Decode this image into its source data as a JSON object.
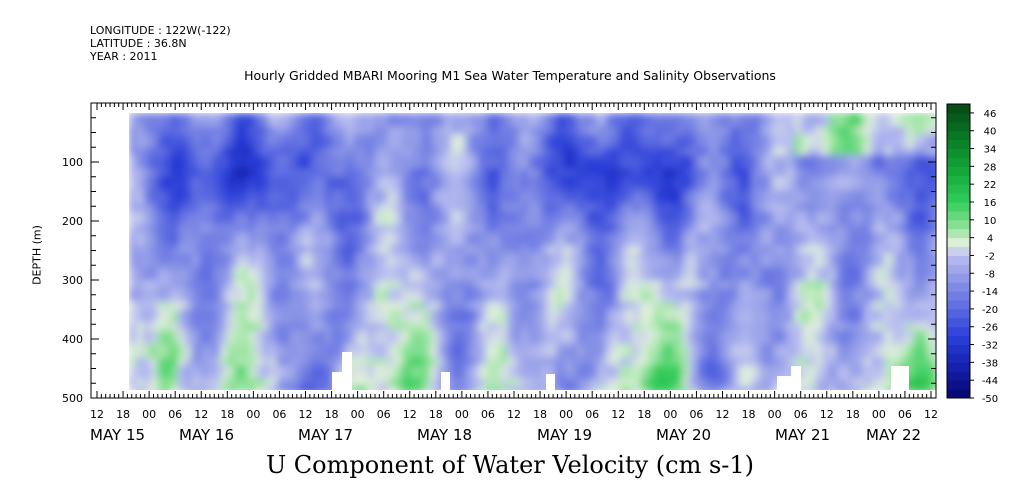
{
  "meta": {
    "longitude": "LONGITUDE : 122W(-122)",
    "latitude": "LATITUDE : 36.8N",
    "year": "YEAR : 2011"
  },
  "chart_data": {
    "type": "heatmap",
    "title": "Hourly Gridded MBARI Mooring M1 Sea Water Temperature and Salinity Observations",
    "xlabel": "U Component of Water Velocity (cm s-1)",
    "ylabel": "DEPTH (m)",
    "x_hour_ticks": [
      "12",
      "18",
      "00",
      "06",
      "12",
      "18",
      "00",
      "06",
      "12",
      "18",
      "00",
      "06",
      "12",
      "18",
      "00",
      "06",
      "12",
      "18",
      "00",
      "06",
      "12",
      "18",
      "00",
      "06",
      "12",
      "18",
      "00",
      "06",
      "12",
      "18",
      "00",
      "06",
      "12"
    ],
    "x_day_labels": [
      "MAY 15",
      "MAY 16",
      "MAY 17",
      "MAY 18",
      "MAY 19",
      "MAY 20",
      "MAY 21",
      "MAY 22"
    ],
    "y_ticks": [
      100,
      200,
      300,
      400,
      500
    ],
    "ylim": [
      0,
      500
    ],
    "y_inverted": true,
    "colorbar": {
      "labels": [
        46,
        40,
        34,
        28,
        22,
        16,
        10,
        4,
        -2,
        -8,
        -14,
        -20,
        -26,
        -32,
        -38,
        -44,
        -50
      ],
      "range": [
        -50,
        49
      ],
      "negative_color": "#2a3ce0",
      "positive_color": "#12b83a",
      "near_zero_color": "#e3f2e0"
    },
    "grid": false
  }
}
